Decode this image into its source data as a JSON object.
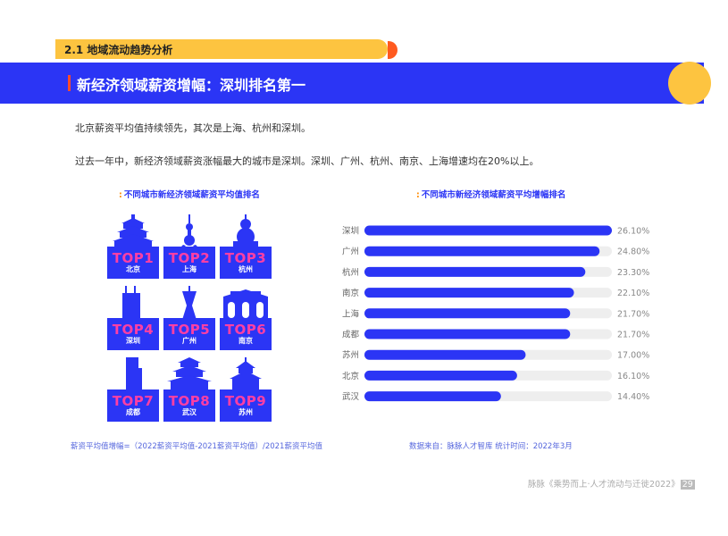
{
  "section": {
    "label": "2.1 地域流动趋势分析"
  },
  "header": {
    "title": "新经济领域薪资增幅：深圳排名第一"
  },
  "paragraphs": [
    "北京薪资平均值持续领先，其次是上海、杭州和深圳。",
    "过去一年中，新经济领域薪资涨幅最大的城市是深圳。深圳、广州、杭州、南京、上海增速均在20%以上。"
  ],
  "left_panel": {
    "title": "不同城市新经济领域薪资平均值排名",
    "ranks": [
      {
        "rank": "TOP1",
        "city": "北京"
      },
      {
        "rank": "TOP2",
        "city": "上海"
      },
      {
        "rank": "TOP3",
        "city": "杭州"
      },
      {
        "rank": "TOP4",
        "city": "深圳"
      },
      {
        "rank": "TOP5",
        "city": "广州"
      },
      {
        "rank": "TOP6",
        "city": "南京"
      },
      {
        "rank": "TOP7",
        "city": "成都"
      },
      {
        "rank": "TOP8",
        "city": "武汉"
      },
      {
        "rank": "TOP9",
        "city": "苏州"
      }
    ],
    "note": "薪资平均值增幅=（2022薪资平均值-2021薪资平均值）/2021薪资平均值"
  },
  "right_panel": {
    "note": "数据来自：脉脉人才智库  统计时间：2022年3月"
  },
  "chart_data": {
    "type": "bar",
    "orientation": "horizontal",
    "title": "不同城市新经济领域薪资平均增幅排名",
    "categories": [
      "深圳",
      "广州",
      "杭州",
      "南京",
      "上海",
      "成都",
      "苏州",
      "北京",
      "武汉"
    ],
    "values": [
      26.1,
      24.8,
      23.3,
      22.1,
      21.7,
      21.7,
      17.0,
      16.1,
      14.4
    ],
    "value_labels": [
      "26.10%",
      "24.80%",
      "23.30%",
      "22.10%",
      "21.70%",
      "21.70%",
      "17.00%",
      "16.10%",
      "14.40%"
    ],
    "xlim": [
      0,
      26.1
    ],
    "bar_color": "#2b35f5",
    "track_color": "#eeeeee"
  },
  "footer": {
    "text": "脉脉《乘势而上·人才流动与迁徙2022》",
    "page": "29"
  },
  "colors": {
    "accent_blue": "#2b35f5",
    "accent_yellow": "#fdc440",
    "accent_pink": "#ff3fa4",
    "accent_orange": "#ff5a1f"
  }
}
